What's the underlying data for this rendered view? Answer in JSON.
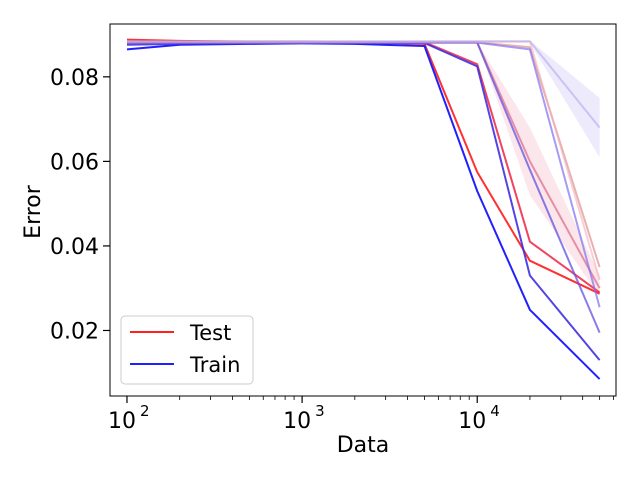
{
  "chart_data": {
    "type": "line",
    "title": "",
    "xlabel": "Data",
    "ylabel": "Error",
    "x_scale": "log",
    "xlim": [
      80,
      62000
    ],
    "ylim": [
      0.0045,
      0.0925
    ],
    "x_ticks": [
      {
        "value": 100,
        "base": "10",
        "exp": "2"
      },
      {
        "value": 1000,
        "base": "10",
        "exp": "3"
      },
      {
        "value": 10000,
        "base": "10",
        "exp": "4"
      }
    ],
    "y_ticks": [
      {
        "value": 0.02,
        "label": "0.02"
      },
      {
        "value": 0.04,
        "label": "0.04"
      },
      {
        "value": 0.06,
        "label": "0.06"
      },
      {
        "value": 0.08,
        "label": "0.08"
      }
    ],
    "grid": false,
    "legend": {
      "position": "lower-left",
      "entries": [
        {
          "label": "Test",
          "color": "#ff2020"
        },
        {
          "label": "Train",
          "color": "#2020ff"
        }
      ]
    },
    "colors": {
      "test": "#ff2020",
      "train": "#2020ff",
      "axis": "#000000",
      "background": "#ffffff"
    },
    "series": [
      {
        "group": "Test",
        "color": "#ff3030",
        "opacity": 1.0,
        "points": [
          [
            100,
            0.0888
          ],
          [
            200,
            0.0885
          ],
          [
            500,
            0.0883
          ],
          [
            1000,
            0.0883
          ],
          [
            2000,
            0.0882
          ],
          [
            5000,
            0.0878
          ],
          [
            10000,
            0.0575
          ],
          [
            20000,
            0.0365
          ],
          [
            50000,
            0.0287
          ]
        ]
      },
      {
        "group": "Train",
        "color": "#2020ff",
        "opacity": 1.0,
        "points": [
          [
            100,
            0.0865
          ],
          [
            200,
            0.0876
          ],
          [
            500,
            0.0878
          ],
          [
            1000,
            0.0879
          ],
          [
            2000,
            0.0878
          ],
          [
            5000,
            0.0873
          ],
          [
            10000,
            0.053
          ],
          [
            20000,
            0.0249
          ],
          [
            50000,
            0.0085
          ]
        ]
      },
      {
        "group": "Test",
        "color": "#f03050",
        "opacity": 0.9,
        "points": [
          [
            100,
            0.0882
          ],
          [
            200,
            0.0882
          ],
          [
            500,
            0.0882
          ],
          [
            1000,
            0.0882
          ],
          [
            2000,
            0.0882
          ],
          [
            5000,
            0.0882
          ],
          [
            10000,
            0.083
          ],
          [
            20000,
            0.041
          ],
          [
            50000,
            0.029
          ]
        ]
      },
      {
        "group": "Train",
        "color": "#4030e0",
        "opacity": 0.9,
        "points": [
          [
            100,
            0.0876
          ],
          [
            200,
            0.0878
          ],
          [
            500,
            0.0879
          ],
          [
            1000,
            0.088
          ],
          [
            2000,
            0.088
          ],
          [
            5000,
            0.088
          ],
          [
            10000,
            0.0825
          ],
          [
            20000,
            0.033
          ],
          [
            50000,
            0.013
          ]
        ]
      },
      {
        "group": "Test",
        "color": "#e07090",
        "opacity": 0.75,
        "points": [
          [
            100,
            0.0882
          ],
          [
            200,
            0.0882
          ],
          [
            500,
            0.0882
          ],
          [
            1000,
            0.0882
          ],
          [
            2000,
            0.0882
          ],
          [
            5000,
            0.0882
          ],
          [
            10000,
            0.0882
          ],
          [
            20000,
            0.06
          ],
          [
            50000,
            0.03
          ]
        ]
      },
      {
        "group": "Train",
        "color": "#6050e0",
        "opacity": 0.75,
        "points": [
          [
            100,
            0.088
          ],
          [
            200,
            0.088
          ],
          [
            500,
            0.088
          ],
          [
            1000,
            0.0881
          ],
          [
            2000,
            0.0881
          ],
          [
            5000,
            0.0881
          ],
          [
            10000,
            0.0881
          ],
          [
            20000,
            0.058
          ],
          [
            50000,
            0.0195
          ]
        ]
      },
      {
        "group": "Test",
        "color": "#e09090",
        "opacity": 0.7,
        "points": [
          [
            100,
            0.0882
          ],
          [
            200,
            0.0882
          ],
          [
            500,
            0.0882
          ],
          [
            1000,
            0.0882
          ],
          [
            2000,
            0.0882
          ],
          [
            5000,
            0.0882
          ],
          [
            10000,
            0.0882
          ],
          [
            20000,
            0.087
          ],
          [
            50000,
            0.035
          ]
        ]
      },
      {
        "group": "Train",
        "color": "#8070f0",
        "opacity": 0.7,
        "points": [
          [
            100,
            0.0881
          ],
          [
            200,
            0.0881
          ],
          [
            500,
            0.0881
          ],
          [
            1000,
            0.0881
          ],
          [
            2000,
            0.0881
          ],
          [
            5000,
            0.0881
          ],
          [
            10000,
            0.0881
          ],
          [
            20000,
            0.0865
          ],
          [
            50000,
            0.0255
          ]
        ]
      },
      {
        "group": "Test",
        "color": "#f0b0b8",
        "opacity": 0.6,
        "points": [
          [
            100,
            0.0883
          ],
          [
            200,
            0.0883
          ],
          [
            500,
            0.0883
          ],
          [
            1000,
            0.0883
          ],
          [
            2000,
            0.0883
          ],
          [
            5000,
            0.0883
          ],
          [
            10000,
            0.0883
          ],
          [
            20000,
            0.0883
          ],
          [
            50000,
            0.032
          ]
        ]
      },
      {
        "group": "Train",
        "color": "#b0a8f0",
        "opacity": 0.6,
        "points": [
          [
            100,
            0.0884
          ],
          [
            200,
            0.0884
          ],
          [
            500,
            0.0884
          ],
          [
            1000,
            0.0884
          ],
          [
            2000,
            0.0884
          ],
          [
            5000,
            0.0884
          ],
          [
            10000,
            0.0884
          ],
          [
            20000,
            0.0884
          ],
          [
            50000,
            0.068
          ]
        ]
      }
    ],
    "bands": [
      {
        "color": "#f0a0b0",
        "opacity": 0.25,
        "points": [
          [
            10000,
            0.0882,
            0.0882
          ],
          [
            20000,
            0.052,
            0.068
          ],
          [
            50000,
            0.028,
            0.033
          ]
        ]
      },
      {
        "color": "#b8b0f0",
        "opacity": 0.25,
        "points": [
          [
            20000,
            0.088,
            0.0886
          ],
          [
            50000,
            0.061,
            0.075
          ]
        ]
      }
    ]
  }
}
